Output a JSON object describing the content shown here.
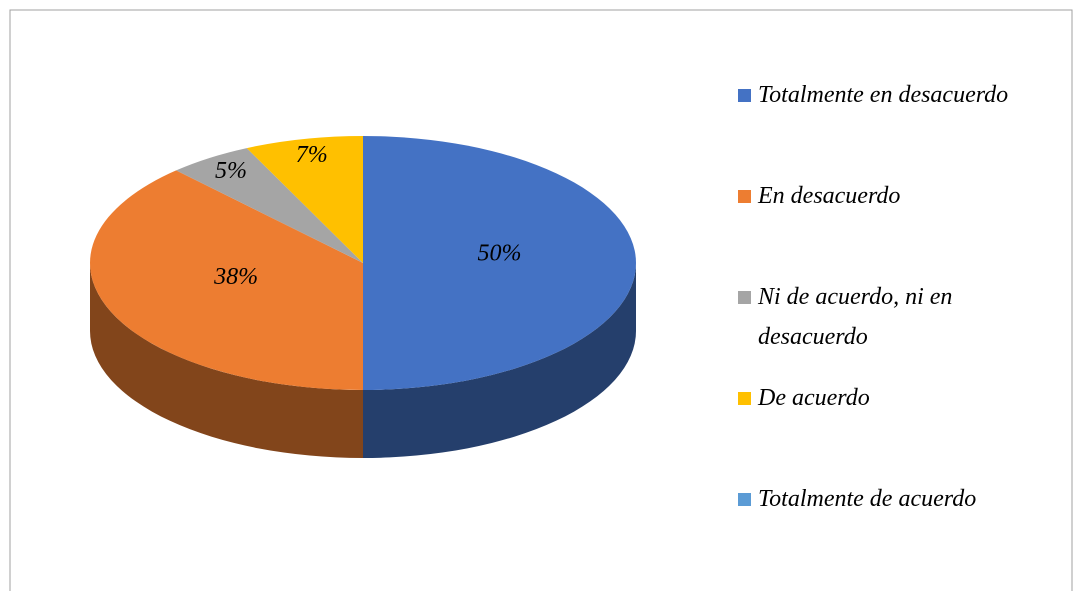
{
  "chart_data": {
    "type": "pie",
    "three_d": true,
    "categories": [
      "Totalmente en desacuerdo",
      "En desacuerdo",
      "Ni de acuerdo, ni en desacuerdo",
      "De acuerdo",
      "Totalmente de acuerdo"
    ],
    "values": [
      50,
      38,
      5,
      7,
      0
    ],
    "value_labels": [
      "50%",
      "38%",
      "5%",
      "7%",
      null
    ],
    "colors": [
      "#4472c4",
      "#ed7d31",
      "#a5a5a5",
      "#ffc000",
      "#5b9bd5"
    ],
    "legend": "right"
  }
}
